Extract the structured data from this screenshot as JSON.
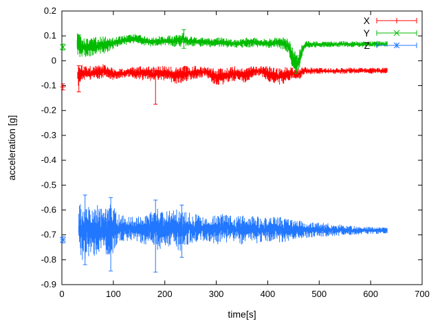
{
  "chart_data": {
    "type": "line",
    "plot_style": "errorbars",
    "title": "",
    "xlabel": "time[s]",
    "ylabel": "acceleration [g]",
    "xlim": [
      0,
      700
    ],
    "ylim": [
      -0.9,
      0.2
    ],
    "grid": false,
    "noise_seed": 1337,
    "xticks": {
      "values": [
        0,
        100,
        200,
        300,
        400,
        500,
        600,
        700
      ],
      "labels": [
        "0",
        "100",
        "200",
        "300",
        "400",
        "500",
        "600",
        "700"
      ]
    },
    "yticks": {
      "values": [
        -0.9,
        -0.8,
        -0.7,
        -0.6,
        -0.5,
        -0.4,
        -0.3,
        -0.2,
        -0.1,
        0,
        0.1,
        0.2
      ],
      "labels": [
        "-0.9",
        "-0.8",
        "-0.7",
        "-0.6",
        "-0.5",
        "-0.4",
        "-0.3",
        "-0.2",
        "-0.1",
        "0",
        "0.1",
        "0.2"
      ]
    },
    "legend": {
      "position": "top-right",
      "entries": [
        {
          "label": "X",
          "color": "#ff0000",
          "marker": "plus"
        },
        {
          "label": "Y",
          "color": "#00bb00",
          "marker": "cross"
        },
        {
          "label": "Z",
          "color": "#2277ff",
          "marker": "star"
        }
      ]
    },
    "series": [
      {
        "name": "X",
        "color": "#ff0000",
        "marker": "plus",
        "first_point": {
          "x": 2,
          "y": -0.105,
          "err": 0.012
        },
        "band": {
          "x_start": 31,
          "x_end": 632,
          "envelope": [
            [
              31,
              -0.06,
              0.05
            ],
            [
              40,
              -0.05,
              0.035
            ],
            [
              55,
              -0.05,
              0.03
            ],
            [
              70,
              -0.045,
              0.03
            ],
            [
              85,
              -0.04,
              0.03
            ],
            [
              100,
              -0.055,
              0.025
            ],
            [
              115,
              -0.05,
              0.02
            ],
            [
              130,
              -0.045,
              0.02
            ],
            [
              145,
              -0.05,
              0.025
            ],
            [
              160,
              -0.05,
              0.03
            ],
            [
              175,
              -0.055,
              0.03
            ],
            [
              190,
              -0.05,
              0.03
            ],
            [
              205,
              -0.05,
              0.03
            ],
            [
              220,
              -0.06,
              0.035
            ],
            [
              235,
              -0.055,
              0.035
            ],
            [
              250,
              -0.05,
              0.03
            ],
            [
              265,
              -0.045,
              0.025
            ],
            [
              280,
              -0.045,
              0.02
            ],
            [
              295,
              -0.06,
              0.035
            ],
            [
              310,
              -0.065,
              0.035
            ],
            [
              325,
              -0.055,
              0.03
            ],
            [
              340,
              -0.05,
              0.03
            ],
            [
              355,
              -0.06,
              0.03
            ],
            [
              370,
              -0.045,
              0.025
            ],
            [
              385,
              -0.04,
              0.02
            ],
            [
              400,
              -0.05,
              0.03
            ],
            [
              415,
              -0.065,
              0.035
            ],
            [
              430,
              -0.06,
              0.035
            ],
            [
              445,
              -0.05,
              0.025
            ],
            [
              460,
              -0.055,
              0.025
            ],
            [
              470,
              -0.04,
              0.015
            ],
            [
              490,
              -0.04,
              0.013
            ],
            [
              520,
              -0.042,
              0.012
            ],
            [
              560,
              -0.04,
              0.012
            ],
            [
              600,
              -0.04,
              0.012
            ],
            [
              632,
              -0.04,
              0.012
            ]
          ]
        },
        "spikes": [
          [
            33,
            -0.125,
            -0.02
          ],
          [
            182,
            -0.175,
            -0.04
          ]
        ]
      },
      {
        "name": "Y",
        "color": "#00bb00",
        "marker": "cross",
        "first_point": {
          "x": 2,
          "y": 0.055,
          "err": 0.012
        },
        "band": {
          "x_start": 30,
          "x_end": 632,
          "envelope": [
            [
              30,
              0.065,
              0.05
            ],
            [
              40,
              0.06,
              0.045
            ],
            [
              55,
              0.055,
              0.04
            ],
            [
              70,
              0.06,
              0.035
            ],
            [
              85,
              0.065,
              0.035
            ],
            [
              100,
              0.07,
              0.025
            ],
            [
              115,
              0.08,
              0.02
            ],
            [
              130,
              0.085,
              0.02
            ],
            [
              145,
              0.09,
              0.02
            ],
            [
              160,
              0.08,
              0.02
            ],
            [
              175,
              0.075,
              0.018
            ],
            [
              190,
              0.08,
              0.02
            ],
            [
              205,
              0.08,
              0.022
            ],
            [
              220,
              0.08,
              0.025
            ],
            [
              235,
              0.085,
              0.03
            ],
            [
              250,
              0.078,
              0.02
            ],
            [
              265,
              0.075,
              0.018
            ],
            [
              280,
              0.075,
              0.018
            ],
            [
              295,
              0.072,
              0.02
            ],
            [
              310,
              0.075,
              0.02
            ],
            [
              325,
              0.07,
              0.018
            ],
            [
              340,
              0.068,
              0.018
            ],
            [
              355,
              0.072,
              0.02
            ],
            [
              370,
              0.075,
              0.02
            ],
            [
              385,
              0.072,
              0.018
            ],
            [
              400,
              0.07,
              0.02
            ],
            [
              415,
              0.072,
              0.022
            ],
            [
              430,
              0.07,
              0.025
            ],
            [
              440,
              0.06,
              0.03
            ],
            [
              448,
              0.02,
              0.05
            ],
            [
              456,
              -0.015,
              0.035
            ],
            [
              462,
              0.01,
              0.04
            ],
            [
              468,
              0.05,
              0.025
            ],
            [
              475,
              0.065,
              0.015
            ],
            [
              500,
              0.065,
              0.012
            ],
            [
              540,
              0.067,
              0.012
            ],
            [
              580,
              0.066,
              0.012
            ],
            [
              632,
              0.067,
              0.012
            ]
          ]
        },
        "spikes": [
          [
            237,
            0.05,
            0.125
          ],
          [
            455,
            -0.05,
            0.02
          ]
        ]
      },
      {
        "name": "Z",
        "color": "#2277ff",
        "marker": "star",
        "first_point": {
          "x": 2,
          "y": -0.72,
          "err": 0.012
        },
        "band": {
          "x_start": 33,
          "x_end": 632,
          "envelope": [
            [
              33,
              -0.68,
              0.1
            ],
            [
              40,
              -0.685,
              0.12
            ],
            [
              50,
              -0.68,
              0.11
            ],
            [
              60,
              -0.685,
              0.11
            ],
            [
              70,
              -0.68,
              0.1
            ],
            [
              80,
              -0.68,
              0.09
            ],
            [
              95,
              -0.68,
              0.11
            ],
            [
              110,
              -0.675,
              0.06
            ],
            [
              125,
              -0.675,
              0.05
            ],
            [
              140,
              -0.675,
              0.05
            ],
            [
              155,
              -0.68,
              0.055
            ],
            [
              170,
              -0.68,
              0.07
            ],
            [
              185,
              -0.68,
              0.09
            ],
            [
              200,
              -0.675,
              0.07
            ],
            [
              215,
              -0.675,
              0.075
            ],
            [
              230,
              -0.68,
              0.085
            ],
            [
              245,
              -0.675,
              0.07
            ],
            [
              260,
              -0.675,
              0.06
            ],
            [
              275,
              -0.675,
              0.05
            ],
            [
              290,
              -0.68,
              0.05
            ],
            [
              305,
              -0.675,
              0.065
            ],
            [
              320,
              -0.675,
              0.055
            ],
            [
              335,
              -0.675,
              0.05
            ],
            [
              350,
              -0.68,
              0.06
            ],
            [
              365,
              -0.675,
              0.05
            ],
            [
              380,
              -0.68,
              0.055
            ],
            [
              395,
              -0.68,
              0.05
            ],
            [
              410,
              -0.675,
              0.05
            ],
            [
              425,
              -0.68,
              0.055
            ],
            [
              440,
              -0.68,
              0.045
            ],
            [
              455,
              -0.68,
              0.04
            ],
            [
              470,
              -0.68,
              0.035
            ],
            [
              490,
              -0.68,
              0.03
            ],
            [
              510,
              -0.68,
              0.028
            ],
            [
              530,
              -0.68,
              0.025
            ],
            [
              555,
              -0.682,
              0.02
            ],
            [
              580,
              -0.682,
              0.016
            ],
            [
              605,
              -0.682,
              0.014
            ],
            [
              632,
              -0.682,
              0.012
            ]
          ]
        },
        "spikes": [
          [
            45,
            -0.82,
            -0.54
          ],
          [
            95,
            -0.845,
            -0.55
          ],
          [
            182,
            -0.85,
            -0.56
          ],
          [
            233,
            -0.79,
            -0.58
          ]
        ]
      }
    ]
  },
  "colors": {
    "background": "#ffffff",
    "axis": "#000000",
    "text": "#000000"
  }
}
